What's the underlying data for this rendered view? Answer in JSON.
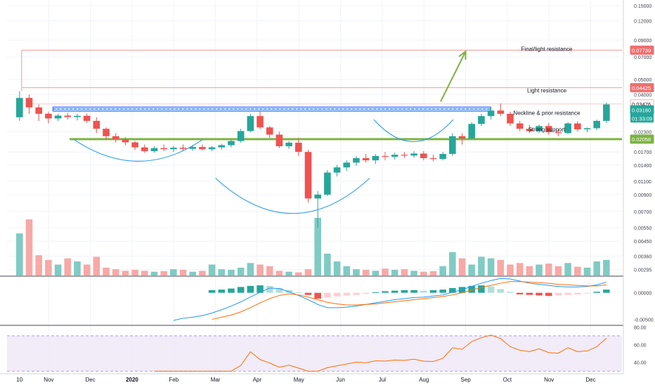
{
  "chart_data": [
    {
      "type": "candlestick",
      "scale": "log",
      "grid": true,
      "price_axis": {
        "ticks": [
          {
            "value": 0.15,
            "label": "0.15000"
          },
          {
            "value": 0.12,
            "label": "0.12000"
          },
          {
            "value": 0.09,
            "label": "0.09000"
          },
          {
            "value": 0.07,
            "label": "0.07000"
          },
          {
            "value": 0.05,
            "label": "0.05000"
          },
          {
            "value": 0.04,
            "label": "0.04000"
          },
          {
            "value": 0.023,
            "label": "0.02300"
          },
          {
            "value": 0.017,
            "label": "0.01700"
          },
          {
            "value": 0.014,
            "label": "0.01400"
          },
          {
            "value": 0.011,
            "label": "0.01100"
          },
          {
            "value": 0.009,
            "label": "0.00900"
          },
          {
            "value": 0.007,
            "label": "0.00700"
          },
          {
            "value": 0.0055,
            "label": "0.00550"
          },
          {
            "value": 0.0045,
            "label": "0.00450"
          },
          {
            "value": 0.0036,
            "label": "0.00360"
          },
          {
            "value": 0.00295,
            "label": "0.00295"
          }
        ],
        "badges": [
          {
            "value": 0.07739,
            "label": "0.07739",
            "color": "#ef6f6f",
            "text_color": "#ffffff"
          },
          {
            "value": 0.04425,
            "label": "0.04425",
            "color": "#ef6f6f",
            "text_color": "#ffffff"
          },
          {
            "value": 0.03476,
            "label": "0.03476",
            "color": "#ffffff",
            "text_color": "#131722",
            "border": "#f0b0b0"
          },
          {
            "value": 0.0318,
            "label": "0.03180",
            "color": "#26a69a",
            "text_color": "#ffffff"
          },
          {
            "value": 0.02058,
            "label": "0.02058",
            "color": "#7cb342",
            "text_color": "#ffffff"
          }
        ],
        "countdown": {
          "label": "01:33:09",
          "color": "#26a69a"
        }
      },
      "time_axis": {
        "labels": [
          "10",
          "Nov",
          "Dec",
          "2020",
          "Feb",
          "Mar",
          "Apr",
          "May",
          "Jun",
          "Jul",
          "Aug",
          "Sep",
          "Oct",
          "Nov",
          "Dec"
        ],
        "months_from_oct_1_2019": [
          0.3,
          1,
          2,
          3,
          4,
          5,
          6,
          7,
          8,
          9,
          10,
          11,
          12,
          13,
          14
        ],
        "range_months_from_oct_1_2019": [
          0,
          14.75
        ]
      },
      "candles": {
        "bar_period": "weekly",
        "first_bar_month_offset": 0.3,
        "up_color": "#26a69a",
        "down_color": "#ef5350",
        "ohlc": [
          [
            0.0285,
            0.042,
            0.027,
            0.038
          ],
          [
            0.038,
            0.04,
            0.03,
            0.033
          ],
          [
            0.033,
            0.0345,
            0.027,
            0.03
          ],
          [
            0.03,
            0.031,
            0.026,
            0.028
          ],
          [
            0.028,
            0.03,
            0.027,
            0.0292
          ],
          [
            0.0292,
            0.0305,
            0.0275,
            0.0286
          ],
          [
            0.0286,
            0.03,
            0.0272,
            0.0291
          ],
          [
            0.0291,
            0.03,
            0.0262,
            0.027
          ],
          [
            0.027,
            0.0285,
            0.0225,
            0.024
          ],
          [
            0.024,
            0.0245,
            0.0205,
            0.0215
          ],
          [
            0.0215,
            0.0225,
            0.0195,
            0.0205
          ],
          [
            0.0205,
            0.0212,
            0.0188,
            0.0196
          ],
          [
            0.0196,
            0.02,
            0.0175,
            0.0182
          ],
          [
            0.0182,
            0.019,
            0.0168,
            0.0172
          ],
          [
            0.0172,
            0.0185,
            0.0168,
            0.018
          ],
          [
            0.018,
            0.019,
            0.0172,
            0.0177
          ],
          [
            0.0177,
            0.0186,
            0.017,
            0.0181
          ],
          [
            0.0181,
            0.019,
            0.0174,
            0.0178
          ],
          [
            0.0178,
            0.0188,
            0.0173,
            0.0183
          ],
          [
            0.0183,
            0.019,
            0.0174,
            0.0177
          ],
          [
            0.0177,
            0.0186,
            0.0172,
            0.0182
          ],
          [
            0.0182,
            0.0192,
            0.0176,
            0.0188
          ],
          [
            0.0188,
            0.0205,
            0.0182,
            0.02
          ],
          [
            0.02,
            0.024,
            0.0195,
            0.0232
          ],
          [
            0.0232,
            0.03,
            0.0228,
            0.029
          ],
          [
            0.029,
            0.031,
            0.0238,
            0.0245
          ],
          [
            0.0245,
            0.025,
            0.021,
            0.022
          ],
          [
            0.022,
            0.023,
            0.018,
            0.0185
          ],
          [
            0.0185,
            0.02,
            0.0178,
            0.0195
          ],
          [
            0.0195,
            0.021,
            0.016,
            0.017
          ],
          [
            0.017,
            0.0175,
            0.008,
            0.0085
          ],
          [
            0.0085,
            0.0095,
            0.0055,
            0.009
          ],
          [
            0.009,
            0.013,
            0.0088,
            0.0125
          ],
          [
            0.0125,
            0.014,
            0.0118,
            0.0135
          ],
          [
            0.0135,
            0.015,
            0.0128,
            0.0145
          ],
          [
            0.0145,
            0.016,
            0.0138,
            0.0155
          ],
          [
            0.0155,
            0.0165,
            0.0145,
            0.015
          ],
          [
            0.015,
            0.0165,
            0.0142,
            0.016
          ],
          [
            0.016,
            0.017,
            0.015,
            0.0158
          ],
          [
            0.0158,
            0.0168,
            0.0152,
            0.0163
          ],
          [
            0.0163,
            0.017,
            0.0155,
            0.0161
          ],
          [
            0.0161,
            0.0172,
            0.0156,
            0.0166
          ],
          [
            0.0166,
            0.0172,
            0.015,
            0.0155
          ],
          [
            0.0155,
            0.0163,
            0.0148,
            0.0153
          ],
          [
            0.0153,
            0.017,
            0.015,
            0.0165
          ],
          [
            0.0165,
            0.0225,
            0.016,
            0.0215
          ],
          [
            0.0215,
            0.0225,
            0.019,
            0.0208
          ],
          [
            0.0208,
            0.0265,
            0.0205,
            0.0258
          ],
          [
            0.0258,
            0.03,
            0.025,
            0.029
          ],
          [
            0.029,
            0.033,
            0.0275,
            0.0315
          ],
          [
            0.0315,
            0.035,
            0.029,
            0.03
          ],
          [
            0.03,
            0.031,
            0.025,
            0.026
          ],
          [
            0.026,
            0.027,
            0.0232,
            0.024
          ],
          [
            0.024,
            0.0255,
            0.0225,
            0.0232
          ],
          [
            0.0232,
            0.0255,
            0.0225,
            0.025
          ],
          [
            0.025,
            0.0262,
            0.022,
            0.0228
          ],
          [
            0.0228,
            0.0235,
            0.0215,
            0.0225
          ],
          [
            0.0225,
            0.0265,
            0.0222,
            0.026
          ],
          [
            0.026,
            0.0268,
            0.023,
            0.0238
          ],
          [
            0.0238,
            0.0245,
            0.0228,
            0.0242
          ],
          [
            0.0242,
            0.0275,
            0.0235,
            0.027
          ],
          [
            0.027,
            0.0355,
            0.0262,
            0.0345
          ]
        ],
        "volume": [
          1.35,
          1.8,
          0.65,
          0.5,
          0.35,
          0.55,
          0.45,
          0.35,
          0.6,
          0.25,
          0.2,
          0.15,
          0.18,
          0.15,
          0.12,
          0.14,
          0.2,
          0.18,
          0.12,
          0.15,
          0.35,
          0.2,
          0.18,
          0.25,
          0.4,
          0.35,
          0.3,
          0.15,
          0.12,
          0.1,
          0.2,
          1.85,
          0.7,
          0.45,
          0.3,
          0.2,
          0.18,
          0.15,
          0.22,
          0.18,
          0.2,
          0.15,
          0.12,
          0.14,
          0.3,
          0.75,
          0.55,
          0.35,
          0.6,
          0.55,
          0.5,
          0.35,
          0.4,
          0.3,
          0.35,
          0.38,
          0.3,
          0.4,
          0.28,
          0.25,
          0.45,
          0.5
        ]
      },
      "horizontal_levels": [
        {
          "value": 0.07739,
          "color": "#ef9a9a"
        },
        {
          "value": 0.04425,
          "color": "#ef9a9a"
        },
        {
          "value": 0.03476,
          "color": "#f8c8c8"
        },
        {
          "value": 0.0322,
          "color": "#2962ff",
          "style": "dashed-band"
        },
        {
          "value": 0.02058,
          "color": "#7cb342",
          "style": "thick"
        }
      ],
      "annotations": [
        {
          "text": "Final/light resistance",
          "price": 0.079
        },
        {
          "text": "Light resistance",
          "price": 0.0425
        },
        {
          "text": "Neckline & prior resistance",
          "price": 0.0305
        },
        {
          "text": "Strong support",
          "price": 0.0238
        }
      ],
      "arrow": {
        "from": [
          10.4,
          0.036
        ],
        "to": [
          11.0,
          0.076
        ],
        "color": "#7cb342"
      },
      "arcs": [
        {
          "months": [
            1.6,
            4.7
          ],
          "top_price": 0.0205,
          "bottom_price": 0.0148,
          "color": "#2196f3"
        },
        {
          "months": [
            5.0,
            8.7
          ],
          "top_price": 0.0115,
          "bottom_price": 0.0068,
          "color": "#2196f3"
        },
        {
          "months": [
            8.8,
            10.7
          ],
          "top_price": 0.0275,
          "bottom_price": 0.0198,
          "color": "#2196f3"
        }
      ]
    },
    {
      "type": "macd",
      "axis_ticks": [
        {
          "value": 0.0,
          "label": "0.00000"
        },
        {
          "value": -0.005,
          "label": "-0.00500"
        }
      ],
      "ylim": [
        -0.006,
        0.003
      ],
      "histogram": [
        0,
        0,
        0,
        0,
        0,
        0,
        0,
        0,
        0,
        0,
        0,
        0,
        0,
        0,
        0,
        0,
        0,
        0,
        0,
        0,
        0.0005,
        0.0006,
        0.0008,
        0.0011,
        0.0013,
        0.0014,
        0.0013,
        0.0009,
        0.0005,
        0.0001,
        -0.0004,
        -0.0011,
        -0.0009,
        -0.0007,
        -0.0005,
        -0.0004,
        -0.0002,
        0.0001,
        0.0003,
        0.0004,
        0.0005,
        0.0005,
        0.0004,
        0.0005,
        0.0006,
        0.0009,
        0.0011,
        0.0013,
        0.0014,
        0.0012,
        0.0007,
        0.0002,
        -0.0003,
        -0.0004,
        -0.0005,
        -0.0006,
        -0.0005,
        -0.0004,
        -0.0003,
        -0.0001,
        0.0002,
        0.0006
      ],
      "macd_line": [
        null,
        null,
        null,
        null,
        null,
        null,
        null,
        null,
        null,
        null,
        null,
        null,
        null,
        null,
        null,
        null,
        -0.0052,
        -0.0048,
        -0.0046,
        -0.0043,
        -0.0038,
        -0.0032,
        -0.0025,
        -0.0017,
        -0.0008,
        0.0001,
        0.0009,
        0.0008,
        0.0002,
        -0.0005,
        -0.0013,
        -0.0022,
        -0.0028,
        -0.0028,
        -0.0027,
        -0.0025,
        -0.0022,
        -0.0019,
        -0.0016,
        -0.0013,
        -0.0011,
        -0.0009,
        -0.0008,
        -0.0006,
        -0.0004,
        0.0001,
        0.0006,
        0.0012,
        0.0018,
        0.0023,
        0.0027,
        0.0026,
        0.0022,
        0.0018,
        0.0016,
        0.0014,
        0.0012,
        0.0011,
        0.0011,
        0.0012,
        0.0015,
        0.002
      ],
      "signal_line": [
        null,
        null,
        null,
        null,
        null,
        null,
        null,
        null,
        null,
        null,
        null,
        null,
        null,
        null,
        null,
        null,
        null,
        null,
        null,
        null,
        -0.005,
        -0.0046,
        -0.0042,
        -0.0036,
        -0.0028,
        -0.0019,
        -0.0011,
        -0.0005,
        -0.0002,
        -0.0004,
        -0.0008,
        -0.0013,
        -0.0018,
        -0.0021,
        -0.0023,
        -0.0023,
        -0.0022,
        -0.0021,
        -0.0019,
        -0.0017,
        -0.0015,
        -0.0013,
        -0.0011,
        -0.0009,
        -0.0007,
        -0.0004,
        0.0,
        0.0005,
        0.001,
        0.0014,
        0.0018,
        0.0021,
        0.0021,
        0.002,
        0.0019,
        0.0018,
        0.0016,
        0.0015,
        0.0014,
        0.0013,
        0.0013,
        0.0015
      ],
      "colors": {
        "macd": "#2196f3",
        "signal": "#ff6d00",
        "hist_pos_strong": "#26a69a",
        "hist_pos_weak": "#b2dfdb",
        "hist_neg_strong": "#ef5350",
        "hist_neg_weak": "#ffcdd2"
      }
    },
    {
      "type": "rsi",
      "axis_ticks": [
        {
          "value": 80,
          "label": "80.00"
        },
        {
          "value": 60,
          "label": "60.00"
        },
        {
          "value": 40,
          "label": "40.00"
        }
      ],
      "ylim": [
        27,
        81
      ],
      "band": [
        30,
        70
      ],
      "line_color": "#ff6d00",
      "values": [
        null,
        null,
        null,
        null,
        null,
        null,
        null,
        null,
        null,
        null,
        null,
        null,
        null,
        null,
        null,
        null,
        null,
        null,
        null,
        null,
        null,
        null,
        null,
        null,
        null,
        null,
        null,
        null,
        null,
        null,
        null,
        null,
        null,
        null,
        null,
        null,
        null,
        null,
        null,
        null,
        null,
        null,
        null,
        null,
        null,
        null,
        null,
        null,
        null,
        null,
        null,
        null,
        null,
        null,
        null,
        null,
        null,
        null,
        null,
        null,
        null,
        null
      ]
    }
  ]
}
